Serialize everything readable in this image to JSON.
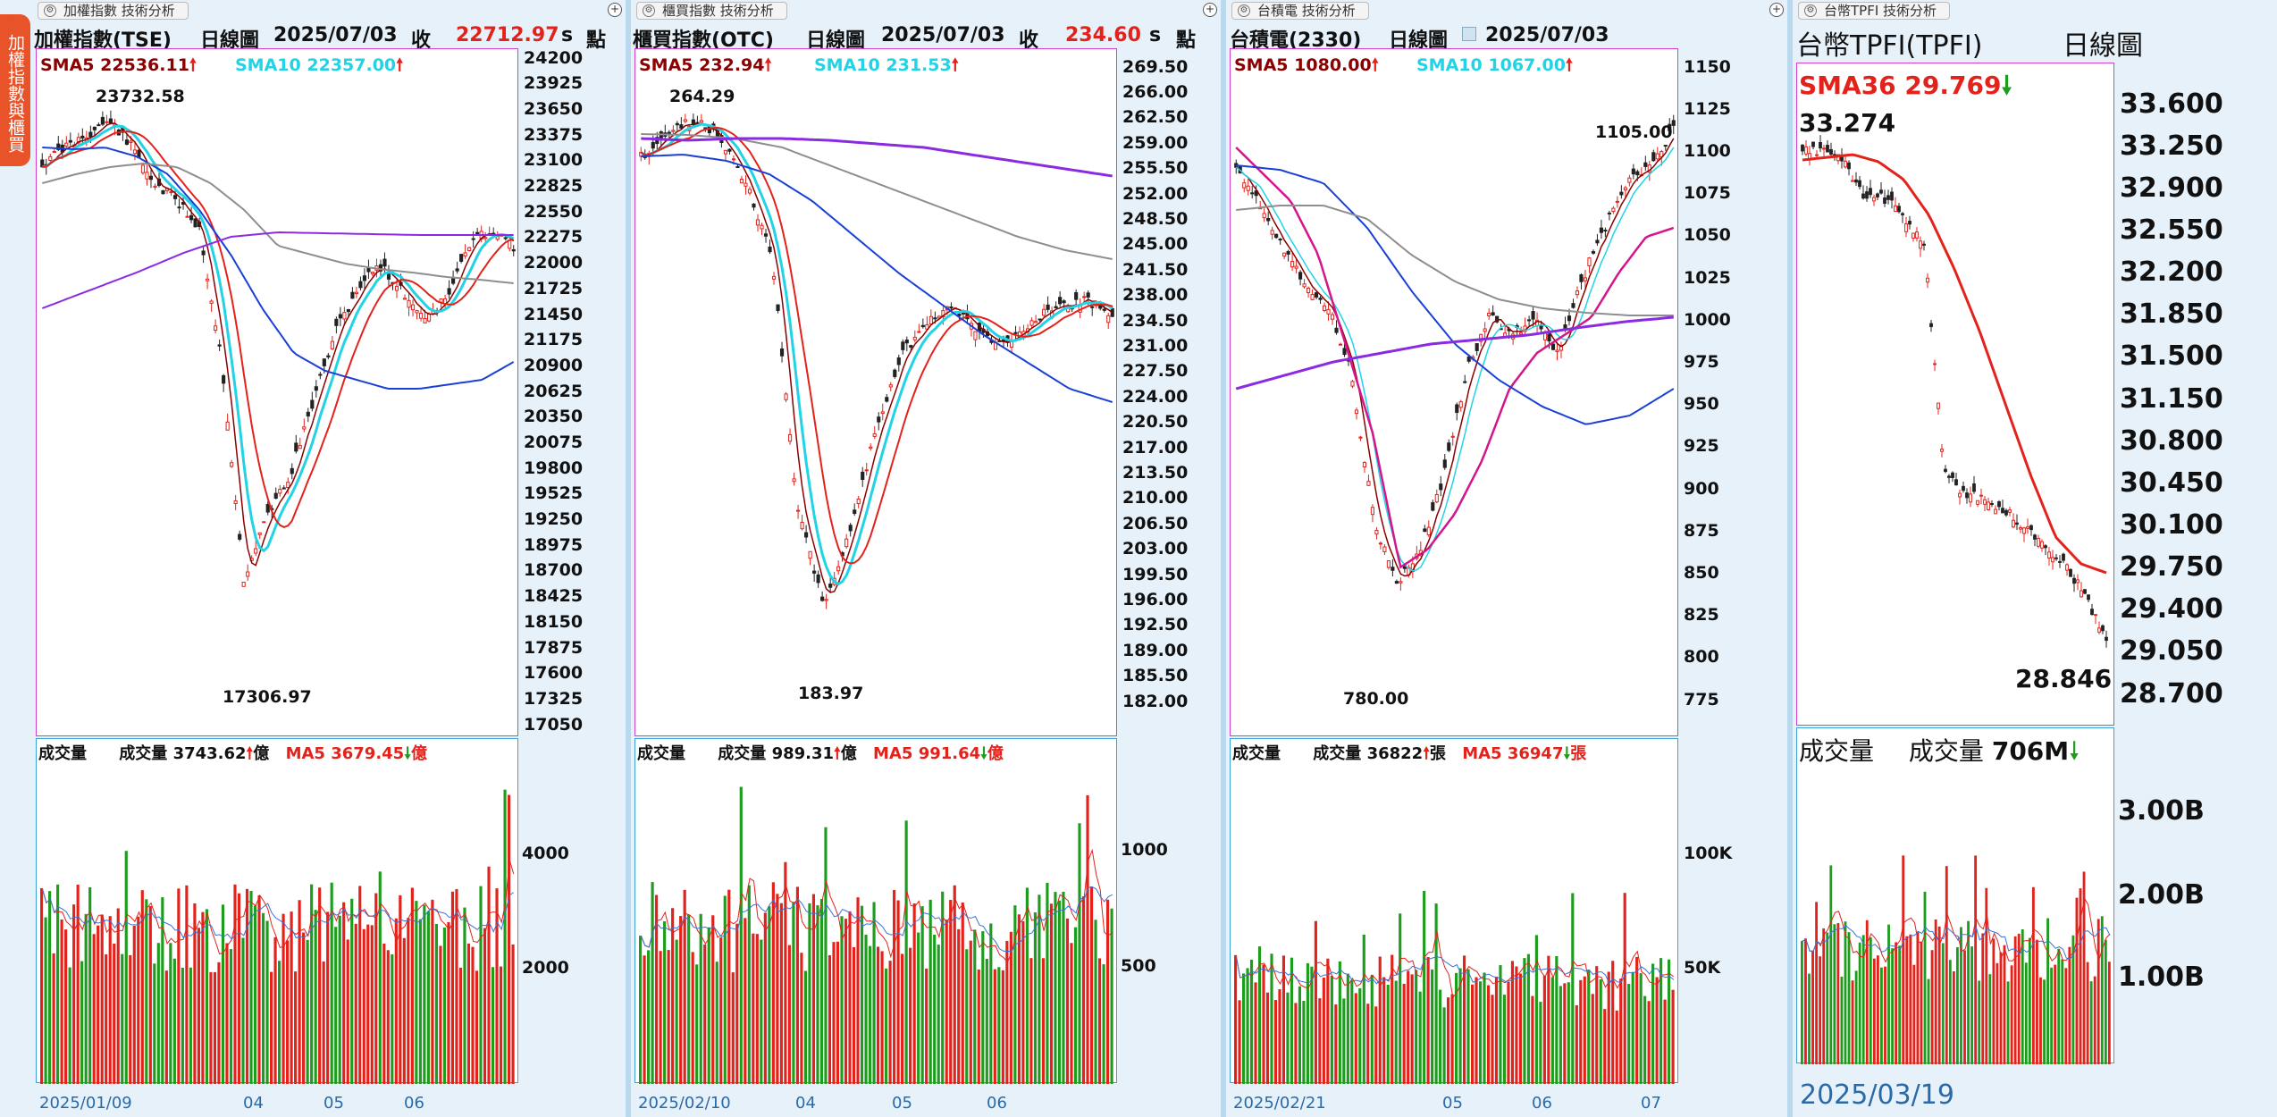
{
  "side_tab": {
    "label": "加權指數與櫃買"
  },
  "colors": {
    "sma5": "#8b0000",
    "sma10": "#22d3e6",
    "up": "#e3221b",
    "down": "#1e9c1e",
    "ma_blue": "#1a3fd6",
    "ma_gray": "#8e8e8e",
    "ma_purple": "#8a2be2",
    "ma_red": "#e3221b",
    "ma_magenta": "#d4158c",
    "vol_ma_blue": "#3a72d8",
    "accent_orange": "#e8532a"
  },
  "icons": {
    "tab": "gear-icon",
    "zoom": "zoom-icon",
    "up": "arrow-up-icon",
    "down": "arrow-down-icon"
  },
  "panels": [
    {
      "tab": "加權指數 技術分析",
      "symbol": "加權指數(TSE)",
      "period": "日線圖",
      "date": "2025/07/03",
      "close_label": "收",
      "close_value": "22712.97",
      "status": "s",
      "unit": "點",
      "sma5": {
        "label": "SMA5",
        "value": "22536.11"
      },
      "sma10": {
        "label": "SMA10",
        "value": "22357.00"
      },
      "y_ticks": [
        "24200",
        "23925",
        "23650",
        "23375",
        "23100",
        "22825",
        "22550",
        "22275",
        "22000",
        "21725",
        "21450",
        "21175",
        "20900",
        "20625",
        "20350",
        "20075",
        "19800",
        "19525",
        "19250",
        "18975",
        "18700",
        "18425",
        "18150",
        "17875",
        "17600",
        "17325",
        "17050"
      ],
      "high_label": "23732.58",
      "low_label": "17306.97",
      "vol_label": "成交量",
      "vol_name": "成交量",
      "vol_value": "3743.62",
      "vol_unit": "億",
      "vol_ma_label": "MA5",
      "vol_ma_value": "3679.45",
      "vol_ticks": [
        "4000",
        "2000"
      ],
      "x_labels": [
        "2025/01/09",
        "04",
        "05",
        "06"
      ]
    },
    {
      "tab": "櫃買指數 技術分析",
      "symbol": "櫃買指數(OTC)",
      "period": "日線圖",
      "date": "2025/07/03",
      "close_label": "收",
      "close_value": "234.60",
      "status": "s",
      "unit": "點",
      "sma5": {
        "label": "SMA5",
        "value": "232.94"
      },
      "sma10": {
        "label": "SMA10",
        "value": "231.53"
      },
      "y_ticks": [
        "269.50",
        "266.00",
        "262.50",
        "259.00",
        "255.50",
        "252.00",
        "248.50",
        "245.00",
        "241.50",
        "238.00",
        "234.50",
        "231.00",
        "227.50",
        "224.00",
        "220.50",
        "217.00",
        "213.50",
        "210.00",
        "206.50",
        "203.00",
        "199.50",
        "196.00",
        "192.50",
        "189.00",
        "185.50",
        "182.00"
      ],
      "high_label": "264.29",
      "low_label": "183.97",
      "vol_label": "成交量",
      "vol_name": "成交量",
      "vol_value": "989.31",
      "vol_unit": "億",
      "vol_ma_label": "MA5",
      "vol_ma_value": "991.64",
      "vol_ticks": [
        "1000",
        "500"
      ],
      "x_labels": [
        "2025/02/10",
        "04",
        "05",
        "06"
      ]
    },
    {
      "tab": "台積電 技術分析",
      "symbol": "台積電(2330)",
      "period": "日線圖",
      "date": "2025/07/03",
      "sma5": {
        "label": "SMA5",
        "value": "1080.00"
      },
      "sma10": {
        "label": "SMA10",
        "value": "1067.00"
      },
      "y_ticks": [
        "1150",
        "1125",
        "1100",
        "1075",
        "1050",
        "1025",
        "1000",
        "975",
        "950",
        "925",
        "900",
        "875",
        "850",
        "825",
        "800",
        "775"
      ],
      "high_label": "1105.00",
      "low_label": "780.00",
      "vol_label": "成交量",
      "vol_name": "成交量",
      "vol_value": "36822",
      "vol_unit": "張",
      "vol_ma_label": "MA5",
      "vol_ma_value": "36947",
      "vol_ticks": [
        "100K",
        "50K"
      ],
      "x_labels": [
        "2025/02/21",
        "05",
        "06",
        "07"
      ]
    },
    {
      "tab": "台幣TPFI 技術分析",
      "symbol": "台幣TPFI(TPFI)",
      "period": "日線圖",
      "sma36": {
        "label": "SMA36",
        "value": "29.769"
      },
      "y_ticks": [
        "33.600",
        "33.250",
        "32.900",
        "32.550",
        "32.200",
        "31.850",
        "31.500",
        "31.150",
        "30.800",
        "30.450",
        "30.100",
        "29.750",
        "29.400",
        "29.050",
        "28.700"
      ],
      "high_label": "33.274",
      "low_label": "28.846",
      "vol_label": "成交量",
      "vol_name": "成交量",
      "vol_value": "706M",
      "vol_ticks": [
        "3.00B",
        "2.00B",
        "1.00B"
      ],
      "x_labels": [
        "2025/03/19"
      ]
    }
  ]
}
